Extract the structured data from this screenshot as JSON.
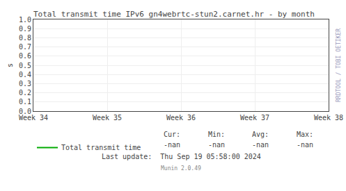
{
  "chart_data": {
    "type": "line",
    "title": "Total transmit time IPv6 gn4webrtc-stun2.carnet.hr - by month",
    "y_label": "s",
    "categories": [
      "Week 34",
      "Week 35",
      "Week 36",
      "Week 37",
      "Week 38"
    ],
    "series": [
      {
        "name": "Total transmit time",
        "color": "#00aa00",
        "values": [
          null,
          null,
          null,
          null,
          null
        ],
        "stats": [
          {
            "label": "Cur:",
            "text": "-nan"
          },
          {
            "label": "Min:",
            "text": "-nan"
          },
          {
            "label": "Avg:",
            "text": "-nan"
          },
          {
            "label": "Max:",
            "text": "-nan"
          }
        ]
      }
    ],
    "ylim": [
      0.0,
      1.0
    ],
    "yticks": [
      {
        "value": 0.0,
        "label": "0.0"
      },
      0.1,
      0.2,
      0.3,
      0.4,
      0.5,
      0.6,
      0.7,
      0.8,
      0.9,
      {
        "value": 1.0,
        "label": "1.0"
      }
    ],
    "grid": true,
    "legend": "bottom left",
    "annotations": [
      "RRDTOOL / TOBI OETIKER",
      "Last update:  Thu Sep 19 05:58:00 2024",
      "Munin 2.0.49"
    ]
  }
}
